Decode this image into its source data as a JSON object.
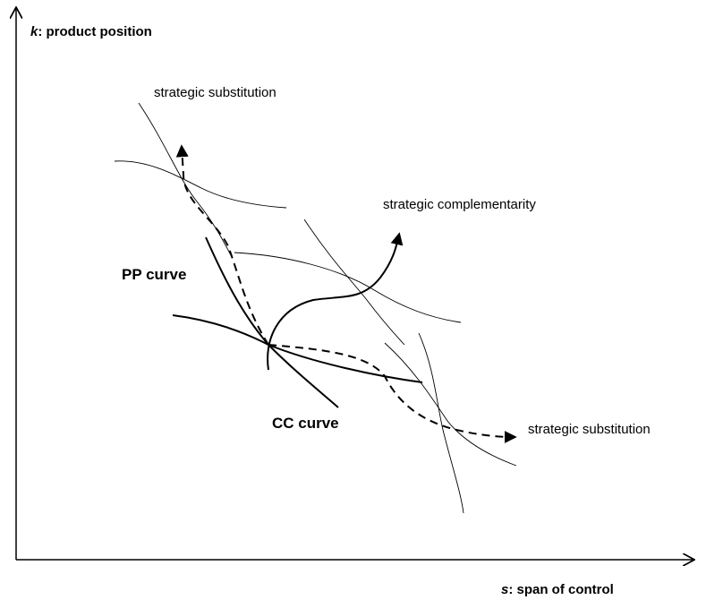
{
  "axes": {
    "y_label": {
      "variable": "k",
      "text": ": product position"
    },
    "x_label": {
      "variable": "s",
      "text": ": span of control"
    }
  },
  "labels": {
    "top_substitution": "strategic  substitution",
    "complementarity": "strategic complementarity",
    "right_substitution": "strategic  substitution",
    "pp_curve": "PP curve",
    "cc_curve": "CC curve"
  }
}
